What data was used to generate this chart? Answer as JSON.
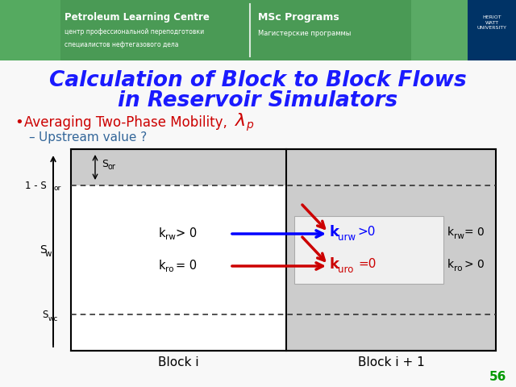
{
  "title_line1": "Calculation of Block to Block Flows",
  "title_line2": "in Reservoir Simulators",
  "title_color": "#1a1aff",
  "bullet_color": "#cc0000",
  "sub_bullet_color": "#336699",
  "slide_bg": "#f8f8f8",
  "header_bg_left": "#3a8a4a",
  "header_bg_right": "#5aaa5a",
  "box_top_bg": "#c0c0c0",
  "box_mid_left_bg": "#ffffff",
  "box_mid_right_bg": "#cccccc",
  "box_bot_left_bg": "#ffffff",
  "box_bot_right_bg": "#c0c0c0",
  "highlight_bg": "#e8e8e8",
  "highlight_border": "#999999",
  "block_i_label": "Block i",
  "block_i1_label": "Block i + 1",
  "slide_number": "56",
  "slide_number_color": "#009900",
  "arrow_blue_color": "#0000ff",
  "arrow_red_color": "#cc0000"
}
